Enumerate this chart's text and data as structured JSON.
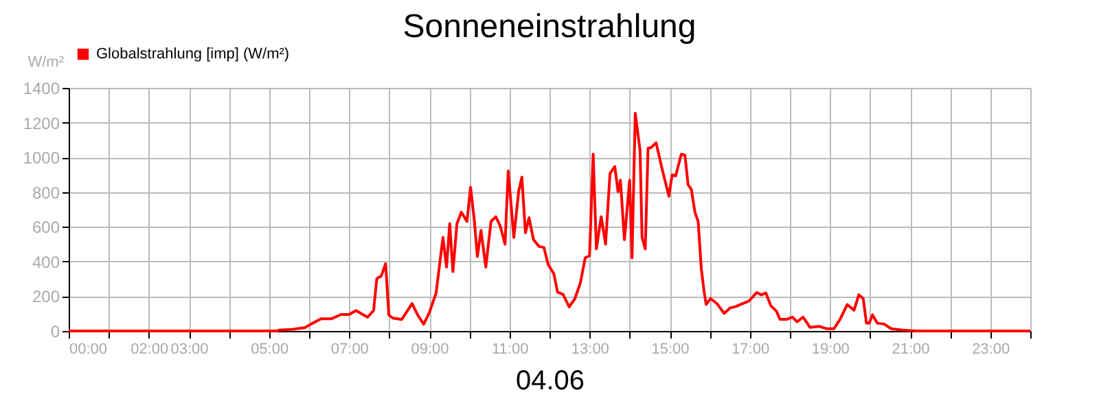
{
  "chart_data": {
    "type": "line",
    "title": "Sonneneinstrahlung",
    "xlabel": "04.06",
    "ylabel": "W/m²",
    "x": [
      0,
      5.2,
      5.25,
      5.6,
      5.9,
      6.05,
      6.3,
      6.55,
      6.8,
      7.0,
      7.17,
      7.46,
      7.61,
      7.69,
      7.8,
      7.91,
      7.99,
      8.09,
      8.31,
      8.57,
      8.71,
      8.86,
      9.0,
      9.17,
      9.34,
      9.43,
      9.51,
      9.59,
      9.69,
      9.8,
      9.94,
      10.03,
      10.12,
      10.2,
      10.29,
      10.41,
      10.54,
      10.66,
      10.77,
      10.89,
      10.97,
      11.11,
      11.23,
      11.31,
      11.4,
      11.49,
      11.6,
      11.74,
      11.86,
      11.97,
      12.11,
      12.2,
      12.34,
      12.49,
      12.63,
      12.77,
      12.89,
      13.0,
      13.09,
      13.17,
      13.29,
      13.4,
      13.51,
      13.63,
      13.71,
      13.77,
      13.87,
      14.0,
      14.06,
      14.14,
      14.26,
      14.31,
      14.39,
      14.46,
      14.54,
      14.66,
      14.81,
      14.98,
      15.06,
      15.15,
      15.29,
      15.38,
      15.46,
      15.54,
      15.63,
      15.71,
      15.79,
      15.86,
      15.91,
      16.02,
      16.19,
      16.36,
      16.51,
      16.65,
      16.79,
      16.98,
      17.17,
      17.29,
      17.4,
      17.52,
      17.67,
      17.75,
      17.92,
      18.06,
      18.18,
      18.33,
      18.5,
      18.73,
      18.91,
      19.1,
      19.25,
      19.43,
      19.6,
      19.72,
      19.83,
      19.91,
      19.98,
      20.06,
      20.18,
      20.35,
      20.53,
      20.82,
      21.16,
      24
    ],
    "series": [
      {
        "name": "Globalstrahlung [imp] (W/m²)",
        "color": "#ff0000",
        "values": [
          0,
          0,
          5,
          10,
          20,
          40,
          70,
          70,
          95,
          95,
          118,
          79,
          118,
          302,
          316,
          387,
          92,
          74,
          66,
          158,
          92,
          39,
          105,
          218,
          539,
          368,
          618,
          342,
          618,
          684,
          631,
          828,
          644,
          429,
          579,
          368,
          631,
          658,
          605,
          500,
          921,
          539,
          802,
          886,
          565,
          652,
          526,
          487,
          481,
          381,
          329,
          224,
          210,
          139,
          184,
          276,
          421,
          434,
          1018,
          473,
          658,
          500,
          907,
          947,
          802,
          868,
          526,
          868,
          421,
          1254,
          1039,
          539,
          473,
          1052,
          1057,
          1084,
          934,
          776,
          899,
          894,
          1018,
          1013,
          842,
          815,
          684,
          631,
          355,
          224,
          153,
          187,
          155,
          101,
          133,
          141,
          155,
          173,
          221,
          208,
          219,
          147,
          112,
          67,
          67,
          80,
          53,
          80,
          21,
          27,
          13,
          13,
          67,
          152,
          120,
          208,
          187,
          45,
          45,
          93,
          45,
          40,
          13,
          5,
          0,
          0
        ]
      }
    ],
    "xlim": [
      0,
      24
    ],
    "ylim": [
      0,
      1400
    ],
    "yticks": [
      0,
      200,
      400,
      600,
      800,
      1000,
      1200,
      1400
    ],
    "xticks": [
      {
        "value": 0,
        "label": "00:00"
      },
      {
        "value": 1,
        "label": null
      },
      {
        "value": 2,
        "label": "02:00"
      },
      {
        "value": 3,
        "label": "03:00"
      },
      {
        "value": 4,
        "label": null
      },
      {
        "value": 5,
        "label": "05:00"
      },
      {
        "value": 6,
        "label": null
      },
      {
        "value": 7,
        "label": "07:00"
      },
      {
        "value": 8,
        "label": null
      },
      {
        "value": 9,
        "label": "09:00"
      },
      {
        "value": 10,
        "label": null
      },
      {
        "value": 11,
        "label": "11:00"
      },
      {
        "value": 12,
        "label": null
      },
      {
        "value": 13,
        "label": "13:00"
      },
      {
        "value": 14,
        "label": null
      },
      {
        "value": 15,
        "label": "15:00"
      },
      {
        "value": 16,
        "label": null
      },
      {
        "value": 17,
        "label": "17:00"
      },
      {
        "value": 18,
        "label": null
      },
      {
        "value": 19,
        "label": "19:00"
      },
      {
        "value": 20,
        "label": null
      },
      {
        "value": 21,
        "label": "21:00"
      },
      {
        "value": 22,
        "label": null
      },
      {
        "value": 23,
        "label": "23:00"
      },
      {
        "value": 24,
        "label": null
      }
    ],
    "grid": true,
    "legend": "top left",
    "marker": "none",
    "line_style": "solid"
  }
}
